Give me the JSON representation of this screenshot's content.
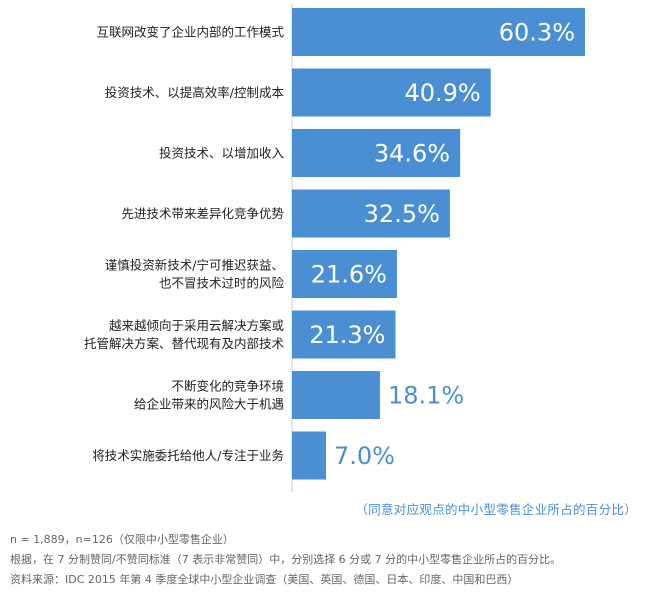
{
  "chart_data": {
    "type": "bar",
    "orientation": "horizontal",
    "categories": [
      [
        "互联网改变了企业内部的工作模式"
      ],
      [
        "投资技术、以提高效率/控制成本"
      ],
      [
        "投资技术、以增加收入"
      ],
      [
        "先进技术带来差异化竞争优势"
      ],
      [
        "谨慎投资新技术/宁可推迟获益、",
        "也不冒技术过时的风险"
      ],
      [
        "越来越倾向于采用云解决方案或",
        "托管解决方案、替代现有及内部技术"
      ],
      [
        "不断变化的竞争环境",
        "给企业带来的风险大于机遇"
      ],
      [
        "将技术实施委托给他人/专注于业务"
      ]
    ],
    "values": [
      60.3,
      40.9,
      34.6,
      32.5,
      21.6,
      21.3,
      18.1,
      7.0
    ],
    "value_labels": [
      "60.3%",
      "40.9%",
      "34.6%",
      "32.5%",
      "21.6%",
      "21.3%",
      "18.1%",
      "7.0%"
    ],
    "bar_color": "#4a8fd3",
    "unit_note": "（同意对应观点的中小型零售企业所占的百分比）",
    "grid": false,
    "legend": "none"
  },
  "footnotes": [
    "n = 1,889，n=126（仅限中小型零售企业）",
    "根据，在 7 分制赞同/不赞同标准（7 表示非常赞同）中，分别选择 6 分或 7 分的中小型零售企业所占的百分比。",
    "资料来源：IDC 2015 年第 4 季度全球中小型企业调查（美国、英国、德国、日本、印度、中国和巴西）"
  ]
}
